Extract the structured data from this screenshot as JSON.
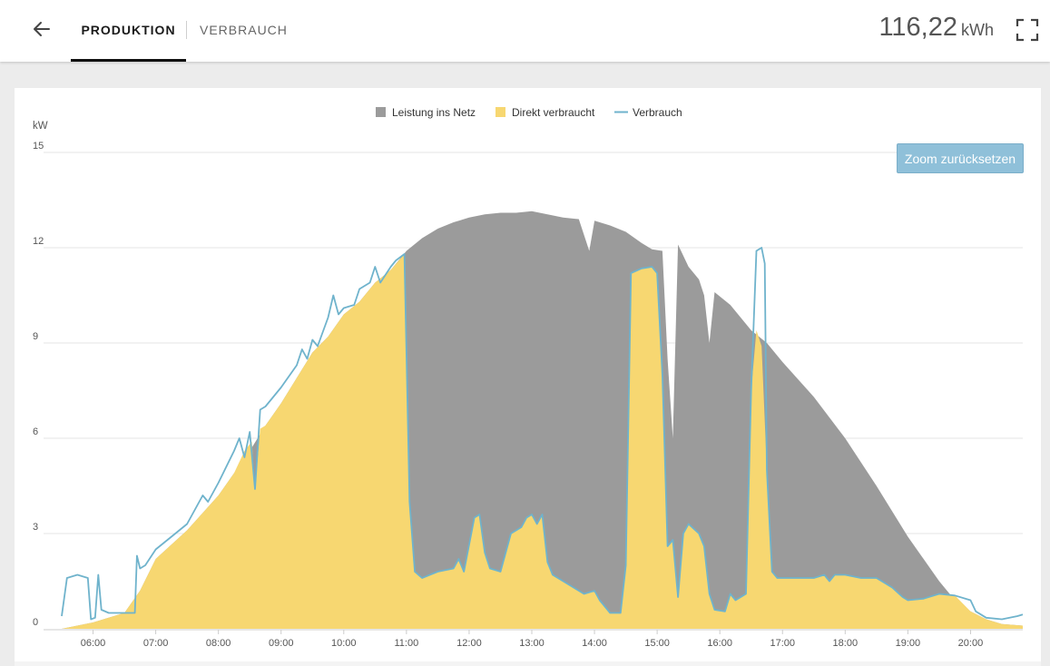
{
  "header": {
    "back_icon": "arrow-left-icon",
    "tabs": [
      {
        "label": "PRODUKTION",
        "active": true
      },
      {
        "label": "VERBRAUCH",
        "active": false
      }
    ],
    "total_value": "116,22",
    "total_unit": "kWh",
    "fullscreen_icon": "fullscreen-icon"
  },
  "zoom_reset_label": "Zoom zurücksetzen",
  "colors": {
    "netz": "#9b9b9b",
    "direkt": "#f7d771",
    "verbrauch": "#6fb3cc",
    "zoom_button": "#8fc0d9"
  },
  "chart_data": {
    "type": "area",
    "ylabel": "kW",
    "ylim": [
      0,
      15
    ],
    "yticks": [
      0,
      3,
      6,
      9,
      12,
      15
    ],
    "xlim": [
      "05:30",
      "20:50"
    ],
    "xticks": [
      "06:00",
      "07:00",
      "08:00",
      "09:00",
      "10:00",
      "11:00",
      "12:00",
      "13:00",
      "14:00",
      "15:00",
      "16:00",
      "17:00",
      "18:00",
      "19:00",
      "20:00"
    ],
    "grid": true,
    "legend_position": "top-center",
    "series": [
      {
        "name": "Leistung ins Netz",
        "kind": "area",
        "color": "#9b9b9b",
        "points": [
          [
            "05:30",
            0
          ],
          [
            "06:00",
            0.2
          ],
          [
            "06:10",
            0.3
          ],
          [
            "06:30",
            0.5
          ],
          [
            "06:45",
            1.2
          ],
          [
            "07:00",
            2.2
          ],
          [
            "07:30",
            3.1
          ],
          [
            "08:00",
            4.2
          ],
          [
            "08:15",
            4.9
          ],
          [
            "08:30",
            5.6
          ],
          [
            "08:45",
            6.4
          ],
          [
            "09:00",
            7.1
          ],
          [
            "09:15",
            7.9
          ],
          [
            "09:30",
            8.7
          ],
          [
            "09:45",
            9.2
          ],
          [
            "10:00",
            9.9
          ],
          [
            "10:15",
            10.3
          ],
          [
            "10:30",
            10.9
          ],
          [
            "10:45",
            11.3
          ],
          [
            "11:00",
            11.9
          ],
          [
            "11:15",
            12.3
          ],
          [
            "11:30",
            12.6
          ],
          [
            "11:45",
            12.8
          ],
          [
            "12:00",
            12.95
          ],
          [
            "12:15",
            13.05
          ],
          [
            "12:30",
            13.1
          ],
          [
            "12:45",
            13.1
          ],
          [
            "13:00",
            13.15
          ],
          [
            "13:15",
            13.05
          ],
          [
            "13:30",
            12.95
          ],
          [
            "13:45",
            12.9
          ],
          [
            "13:55",
            11.9
          ],
          [
            "14:00",
            12.85
          ],
          [
            "14:15",
            12.7
          ],
          [
            "14:30",
            12.5
          ],
          [
            "14:45",
            12.15
          ],
          [
            "14:55",
            11.95
          ],
          [
            "15:05",
            11.9
          ],
          [
            "15:10",
            8.5
          ],
          [
            "15:15",
            6.0
          ],
          [
            "15:20",
            12.1
          ],
          [
            "15:30",
            11.4
          ],
          [
            "15:40",
            11.0
          ],
          [
            "15:45",
            10.5
          ],
          [
            "15:50",
            9.0
          ],
          [
            "15:55",
            10.6
          ],
          [
            "16:10",
            10.2
          ],
          [
            "16:30",
            9.4
          ],
          [
            "16:45",
            9.0
          ],
          [
            "17:00",
            8.4
          ],
          [
            "17:30",
            7.3
          ],
          [
            "18:00",
            6.0
          ],
          [
            "18:30",
            4.5
          ],
          [
            "19:00",
            2.9
          ],
          [
            "19:30",
            1.5
          ],
          [
            "19:45",
            0.9
          ],
          [
            "20:00",
            0.55
          ],
          [
            "20:15",
            0.3
          ],
          [
            "20:30",
            0.15
          ],
          [
            "20:50",
            0.1
          ]
        ]
      },
      {
        "name": "Direkt verbraucht",
        "kind": "area",
        "color": "#f7d771",
        "points": [
          [
            "05:30",
            0
          ],
          [
            "06:00",
            0.2
          ],
          [
            "06:10",
            0.3
          ],
          [
            "06:30",
            0.5
          ],
          [
            "06:45",
            1.2
          ],
          [
            "07:00",
            2.2
          ],
          [
            "07:30",
            3.1
          ],
          [
            "08:00",
            4.2
          ],
          [
            "08:15",
            4.9
          ],
          [
            "08:25",
            5.6
          ],
          [
            "08:32",
            5.9
          ],
          [
            "08:35",
            4.4
          ],
          [
            "08:40",
            6.3
          ],
          [
            "08:45",
            6.4
          ],
          [
            "09:00",
            7.1
          ],
          [
            "09:15",
            7.9
          ],
          [
            "09:30",
            8.7
          ],
          [
            "09:45",
            9.2
          ],
          [
            "10:00",
            9.9
          ],
          [
            "10:15",
            10.3
          ],
          [
            "10:30",
            10.9
          ],
          [
            "10:45",
            11.3
          ],
          [
            "10:58",
            11.8
          ],
          [
            "11:03",
            4.0
          ],
          [
            "11:08",
            1.8
          ],
          [
            "11:15",
            1.6
          ],
          [
            "11:30",
            1.8
          ],
          [
            "11:45",
            1.9
          ],
          [
            "11:50",
            2.2
          ],
          [
            "11:55",
            1.8
          ],
          [
            "12:05",
            3.5
          ],
          [
            "12:10",
            3.6
          ],
          [
            "12:15",
            2.4
          ],
          [
            "12:20",
            1.9
          ],
          [
            "12:30",
            1.8
          ],
          [
            "12:40",
            3.0
          ],
          [
            "12:50",
            3.2
          ],
          [
            "12:55",
            3.5
          ],
          [
            "13:00",
            3.6
          ],
          [
            "13:05",
            3.3
          ],
          [
            "13:10",
            3.6
          ],
          [
            "13:15",
            2.1
          ],
          [
            "13:20",
            1.7
          ],
          [
            "13:30",
            1.5
          ],
          [
            "13:40",
            1.3
          ],
          [
            "13:50",
            1.1
          ],
          [
            "14:00",
            1.2
          ],
          [
            "14:05",
            0.9
          ],
          [
            "14:15",
            0.5
          ],
          [
            "14:25",
            0.5
          ],
          [
            "14:30",
            2.0
          ],
          [
            "14:35",
            11.2
          ],
          [
            "14:45",
            11.35
          ],
          [
            "14:55",
            11.4
          ],
          [
            "15:00",
            11.2
          ],
          [
            "15:05",
            8.0
          ],
          [
            "15:10",
            2.6
          ],
          [
            "15:15",
            2.8
          ],
          [
            "15:20",
            1.0
          ],
          [
            "15:25",
            3.0
          ],
          [
            "15:30",
            3.3
          ],
          [
            "15:40",
            3.0
          ],
          [
            "15:45",
            2.6
          ],
          [
            "15:50",
            1.1
          ],
          [
            "15:55",
            0.6
          ],
          [
            "16:05",
            0.55
          ],
          [
            "16:10",
            1.1
          ],
          [
            "16:15",
            0.9
          ],
          [
            "16:25",
            1.1
          ],
          [
            "16:30",
            7.5
          ],
          [
            "16:35",
            9.4
          ],
          [
            "16:40",
            8.9
          ],
          [
            "16:45",
            5.0
          ],
          [
            "16:50",
            1.8
          ],
          [
            "16:55",
            1.6
          ],
          [
            "17:15",
            1.6
          ],
          [
            "17:30",
            1.6
          ],
          [
            "17:40",
            1.7
          ],
          [
            "17:45",
            1.5
          ],
          [
            "17:50",
            1.7
          ],
          [
            "18:00",
            1.7
          ],
          [
            "18:15",
            1.6
          ],
          [
            "18:30",
            1.6
          ],
          [
            "18:45",
            1.3
          ],
          [
            "18:55",
            1.0
          ],
          [
            "19:00",
            0.9
          ],
          [
            "19:15",
            0.95
          ],
          [
            "19:30",
            1.1
          ],
          [
            "19:45",
            1.05
          ],
          [
            "20:00",
            0.55
          ],
          [
            "20:15",
            0.3
          ],
          [
            "20:30",
            0.15
          ],
          [
            "20:50",
            0.1
          ]
        ]
      },
      {
        "name": "Verbrauch",
        "kind": "line",
        "color": "#6fb3cc",
        "points": [
          [
            "05:30",
            0.4
          ],
          [
            "05:35",
            1.6
          ],
          [
            "05:45",
            1.7
          ],
          [
            "05:55",
            1.6
          ],
          [
            "05:58",
            0.3
          ],
          [
            "06:02",
            0.35
          ],
          [
            "06:05",
            1.7
          ],
          [
            "06:08",
            0.6
          ],
          [
            "06:15",
            0.5
          ],
          [
            "06:30",
            0.5
          ],
          [
            "06:40",
            0.5
          ],
          [
            "06:42",
            2.3
          ],
          [
            "06:45",
            1.9
          ],
          [
            "06:50",
            2.0
          ],
          [
            "07:00",
            2.5
          ],
          [
            "07:15",
            2.9
          ],
          [
            "07:30",
            3.3
          ],
          [
            "07:45",
            4.2
          ],
          [
            "07:50",
            4.0
          ],
          [
            "08:00",
            4.6
          ],
          [
            "08:15",
            5.6
          ],
          [
            "08:20",
            6.0
          ],
          [
            "08:25",
            5.4
          ],
          [
            "08:30",
            6.2
          ],
          [
            "08:35",
            4.4
          ],
          [
            "08:40",
            6.9
          ],
          [
            "08:45",
            7.0
          ],
          [
            "09:00",
            7.6
          ],
          [
            "09:15",
            8.3
          ],
          [
            "09:20",
            8.8
          ],
          [
            "09:25",
            8.5
          ],
          [
            "09:30",
            9.1
          ],
          [
            "09:35",
            8.9
          ],
          [
            "09:45",
            9.8
          ],
          [
            "09:50",
            10.5
          ],
          [
            "09:55",
            9.9
          ],
          [
            "10:00",
            10.1
          ],
          [
            "10:10",
            10.2
          ],
          [
            "10:15",
            10.7
          ],
          [
            "10:25",
            10.9
          ],
          [
            "10:30",
            11.4
          ],
          [
            "10:35",
            10.9
          ],
          [
            "10:45",
            11.4
          ],
          [
            "10:50",
            11.6
          ],
          [
            "10:58",
            11.8
          ],
          [
            "11:03",
            4.0
          ],
          [
            "11:08",
            1.8
          ],
          [
            "11:15",
            1.6
          ],
          [
            "11:30",
            1.8
          ],
          [
            "11:45",
            1.9
          ],
          [
            "11:50",
            2.2
          ],
          [
            "11:55",
            1.8
          ],
          [
            "12:05",
            3.5
          ],
          [
            "12:10",
            3.6
          ],
          [
            "12:15",
            2.4
          ],
          [
            "12:20",
            1.9
          ],
          [
            "12:30",
            1.8
          ],
          [
            "12:40",
            3.0
          ],
          [
            "12:50",
            3.2
          ],
          [
            "12:55",
            3.5
          ],
          [
            "13:00",
            3.6
          ],
          [
            "13:05",
            3.3
          ],
          [
            "13:10",
            3.6
          ],
          [
            "13:15",
            2.1
          ],
          [
            "13:20",
            1.7
          ],
          [
            "13:30",
            1.5
          ],
          [
            "13:40",
            1.3
          ],
          [
            "13:50",
            1.1
          ],
          [
            "14:00",
            1.2
          ],
          [
            "14:05",
            0.9
          ],
          [
            "14:15",
            0.5
          ],
          [
            "14:25",
            0.5
          ],
          [
            "14:30",
            2.0
          ],
          [
            "14:35",
            11.2
          ],
          [
            "14:45",
            11.35
          ],
          [
            "14:55",
            11.4
          ],
          [
            "15:00",
            11.2
          ],
          [
            "15:05",
            8.0
          ],
          [
            "15:10",
            2.6
          ],
          [
            "15:15",
            2.8
          ],
          [
            "15:20",
            1.0
          ],
          [
            "15:25",
            3.0
          ],
          [
            "15:30",
            3.3
          ],
          [
            "15:40",
            3.0
          ],
          [
            "15:45",
            2.6
          ],
          [
            "15:50",
            1.1
          ],
          [
            "15:55",
            0.6
          ],
          [
            "16:05",
            0.55
          ],
          [
            "16:10",
            1.1
          ],
          [
            "16:15",
            0.9
          ],
          [
            "16:25",
            1.1
          ],
          [
            "16:30",
            7.5
          ],
          [
            "16:35",
            11.9
          ],
          [
            "16:40",
            12.0
          ],
          [
            "16:43",
            11.5
          ],
          [
            "16:45",
            5.0
          ],
          [
            "16:50",
            1.8
          ],
          [
            "16:55",
            1.6
          ],
          [
            "17:15",
            1.6
          ],
          [
            "17:30",
            1.6
          ],
          [
            "17:40",
            1.7
          ],
          [
            "17:45",
            1.5
          ],
          [
            "17:50",
            1.7
          ],
          [
            "18:00",
            1.7
          ],
          [
            "18:15",
            1.6
          ],
          [
            "18:30",
            1.6
          ],
          [
            "18:45",
            1.3
          ],
          [
            "18:55",
            1.0
          ],
          [
            "19:00",
            0.9
          ],
          [
            "19:15",
            0.95
          ],
          [
            "19:30",
            1.1
          ],
          [
            "19:45",
            1.05
          ],
          [
            "20:00",
            0.9
          ],
          [
            "20:05",
            0.55
          ],
          [
            "20:15",
            0.35
          ],
          [
            "20:30",
            0.3
          ],
          [
            "20:45",
            0.4
          ],
          [
            "20:50",
            0.45
          ]
        ]
      }
    ]
  }
}
